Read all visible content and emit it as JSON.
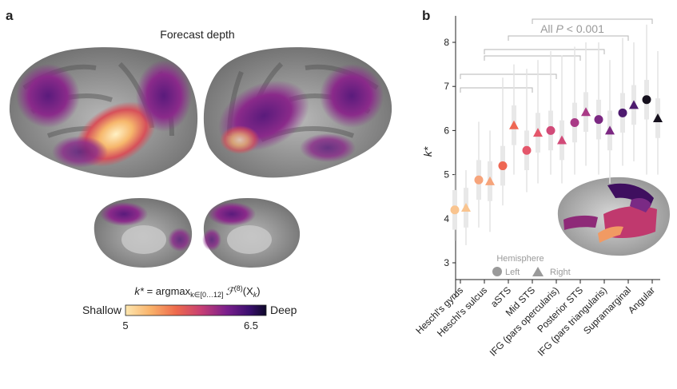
{
  "panel_a": {
    "letter": "a",
    "title": "Forecast depth",
    "formula_k": "k*",
    "formula_eq": " = argmax",
    "formula_sub": "k∈[0…12]",
    "formula_fn": "ℱ",
    "formula_sup": "(8)",
    "formula_arg": "(X",
    "formula_arg_sub": "k",
    "formula_close": ")",
    "colorbar": {
      "left_label": "Shallow",
      "right_label": "Deep",
      "min_tick": "5",
      "max_tick": "6.5",
      "colors": [
        "#fde7b0",
        "#f9b26a",
        "#ee6a4c",
        "#c63e74",
        "#7a1f8c",
        "#3b0f6f",
        "#0d0829"
      ]
    }
  },
  "panel_b": {
    "letter": "b",
    "stat_label": "All ",
    "stat_p": "P",
    "stat_rest": " < 0.001",
    "legend": {
      "title": "Hemisphere",
      "left": "Left",
      "right": "Right"
    }
  },
  "chart_data": {
    "type": "scatter",
    "ylabel": "k*",
    "ylim": [
      2.6,
      8.6
    ],
    "yticks": [
      3,
      4,
      5,
      6,
      7,
      8
    ],
    "categories": [
      "Heschl's gyrus",
      "Heschl's sulcus",
      "aSTS",
      "Mid STS",
      "IFG (pars opercularis)",
      "Posterior STS",
      "IFG (pars triangularis)",
      "Supramarginal",
      "Angular"
    ],
    "colors": [
      "#f9c48f",
      "#f6a47b",
      "#ee6753",
      "#e4566a",
      "#d14a78",
      "#a93a86",
      "#7b2882",
      "#4d1a6e",
      "#15101d"
    ],
    "series": [
      {
        "name": "Left",
        "marker": "circle",
        "values": [
          4.2,
          4.88,
          5.2,
          5.55,
          6.0,
          6.18,
          6.25,
          6.4,
          6.7
        ]
      },
      {
        "name": "Right",
        "marker": "triangle",
        "values": [
          4.25,
          4.85,
          6.12,
          5.95,
          5.78,
          6.42,
          6.0,
          6.58,
          6.28
        ]
      }
    ],
    "left_ranges": [
      [
        3.5,
        5.0
      ],
      [
        3.8,
        6.2
      ],
      [
        4.3,
        7.2
      ],
      [
        4.6,
        7.4
      ],
      [
        5.0,
        7.8
      ],
      [
        5.0,
        7.9
      ],
      [
        5.0,
        8.0
      ],
      [
        5.2,
        8.1
      ],
      [
        5.0,
        8.4
      ]
    ],
    "right_ranges": [
      [
        3.4,
        5.1
      ],
      [
        3.7,
        6.0
      ],
      [
        5.0,
        7.5
      ],
      [
        4.8,
        7.6
      ],
      [
        4.8,
        7.7
      ],
      [
        5.2,
        8.0
      ],
      [
        4.8,
        7.6
      ],
      [
        5.3,
        8.0
      ],
      [
        5.0,
        7.8
      ]
    ]
  }
}
